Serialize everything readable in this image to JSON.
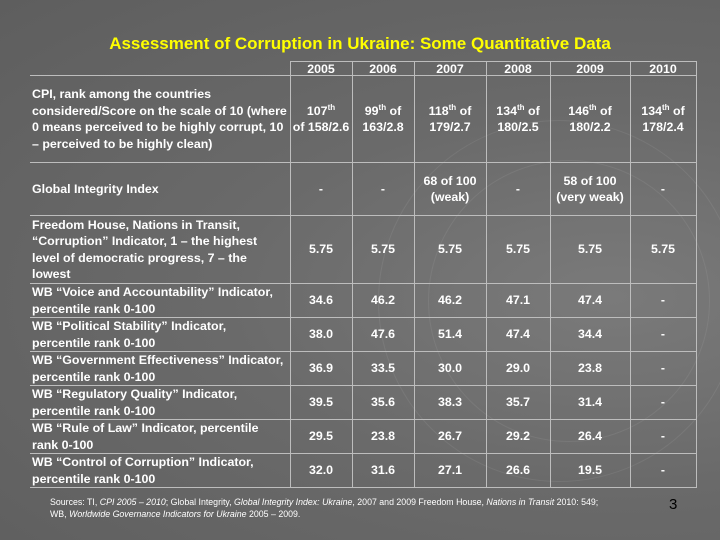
{
  "title": "Assessment of Corruption in Ukraine: Some Quantitative Data",
  "years": [
    "2005",
    "2006",
    "2007",
    "2008",
    "2009",
    "2010"
  ],
  "rows": [
    {
      "label": "CPI, rank among the countries considered/Score on the scale of 10 (where 0 means perceived to be highly corrupt, 10 – perceived to be highly clean)",
      "cells": [
        {
          "rank": "107",
          "sup": "th",
          "rest": "of 158/2.6"
        },
        {
          "rank": "99",
          "sup": "th",
          "rest": "of 163/2.8"
        },
        {
          "rank": "118",
          "sup": "th",
          "rest": "of 179/2.7"
        },
        {
          "rank": "134",
          "sup": "th",
          "rest": "of 180/2.5"
        },
        {
          "rank": "146",
          "sup": "th",
          "rest": "of 180/2.2"
        },
        {
          "rank": "134",
          "sup": "th",
          "rest": "of 178/2.4"
        }
      ]
    },
    {
      "label": "Global Integrity Index",
      "values": [
        "-",
        "-",
        "68 of 100 (weak)",
        "-",
        "58 of 100 (very weak)",
        "-"
      ]
    },
    {
      "label": "Freedom House, Nations in Transit, “Corruption” Indicator, 1 – the highest level of democratic progress, 7 – the lowest",
      "values": [
        "5.75",
        "5.75",
        "5.75",
        "5.75",
        "5.75",
        "5.75"
      ]
    },
    {
      "label": "WB “Voice and Accountability” Indicator, percentile rank 0-100",
      "values": [
        "34.6",
        "46.2",
        "46.2",
        "47.1",
        "47.4",
        "-"
      ]
    },
    {
      "label": "WB “Political Stability” Indicator, percentile rank 0-100",
      "values": [
        "38.0",
        "47.6",
        "51.4",
        "47.4",
        "34.4",
        "-"
      ]
    },
    {
      "label": "WB “Government Effectiveness” Indicator, percentile rank 0-100",
      "values": [
        "36.9",
        "33.5",
        "30.0",
        "29.0",
        "23.8",
        "-"
      ]
    },
    {
      "label": "WB “Regulatory Quality” Indicator, percentile rank 0-100",
      "values": [
        "39.5",
        "35.6",
        "38.3",
        "35.7",
        "31.4",
        "-"
      ]
    },
    {
      "label": "WB “Rule of Law” Indicator, percentile rank 0-100",
      "values": [
        "29.5",
        "23.8",
        "26.7",
        "29.2",
        "26.4",
        "-"
      ]
    },
    {
      "label": "WB “Control of Corruption” Indicator, percentile rank 0-100",
      "values": [
        "32.0",
        "31.6",
        "27.1",
        "26.6",
        "19.5",
        "-"
      ]
    }
  ],
  "sources": {
    "prefix": "Sources: TI, ",
    "cpi": "CPI 2005 – 2010",
    "gi_pre": "; Global Integrity, ",
    "gi": "Global Integrity Index: Ukraine",
    "gi_post": ", 2007 and 2009 Freedom House, ",
    "nit": "Nations in Transit",
    "nit_post": " 2010: 549;",
    "wb_pre": "WB, ",
    "wb": "Worldwide Governance Indicators for Ukraine",
    "wb_post": " 2005 – 2009."
  },
  "page_number": "3",
  "colors": {
    "title": "#ffff00",
    "text": "#ffffff",
    "background": "#6b6b6b"
  }
}
